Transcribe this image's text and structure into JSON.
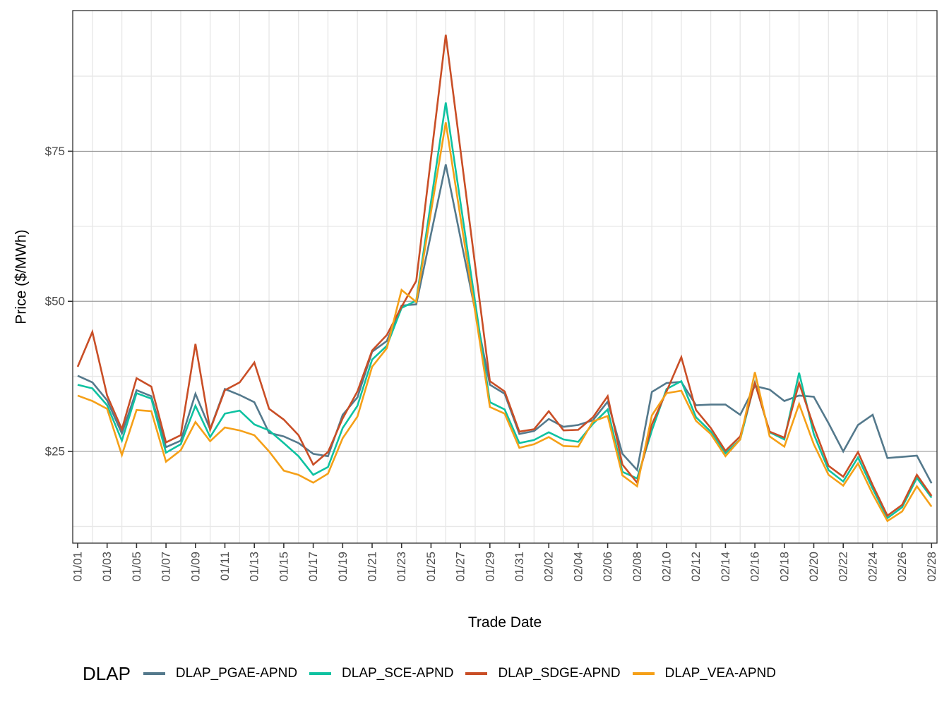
{
  "chart_data": {
    "type": "line",
    "title": "",
    "xlabel": "Trade Date",
    "ylabel": "Price ($/MWh)",
    "legend_title": "DLAP",
    "legend_position": "bottom",
    "grid": {
      "h_major_values": [
        25,
        50,
        75
      ],
      "h_minor_values": [
        12.5,
        37.5,
        62.5,
        87.5
      ],
      "v_gridlines_on_even_days": true
    },
    "ylim": [
      9.7,
      98.5
    ],
    "y_tick_labels": [
      "$25",
      "$50",
      "$75"
    ],
    "y_tick_values": [
      25,
      50,
      75
    ],
    "x_tick_labels": [
      "01/01",
      "01/03",
      "01/05",
      "01/07",
      "01/09",
      "01/11",
      "01/13",
      "01/15",
      "01/17",
      "01/19",
      "01/21",
      "01/23",
      "01/25",
      "01/27",
      "01/29",
      "01/31",
      "02/02",
      "02/04",
      "02/06",
      "02/08",
      "02/10",
      "02/12",
      "02/14",
      "02/16",
      "02/18",
      "02/20",
      "02/22",
      "02/24",
      "02/26",
      "02/28"
    ],
    "x": [
      "01/01",
      "01/02",
      "01/03",
      "01/04",
      "01/05",
      "01/06",
      "01/07",
      "01/08",
      "01/09",
      "01/10",
      "01/11",
      "01/12",
      "01/13",
      "01/14",
      "01/15",
      "01/16",
      "01/17",
      "01/18",
      "01/19",
      "01/20",
      "01/21",
      "01/22",
      "01/23",
      "01/24",
      "01/25",
      "01/26",
      "01/27",
      "01/28",
      "01/29",
      "01/30",
      "01/31",
      "02/01",
      "02/02",
      "02/03",
      "02/04",
      "02/05",
      "02/06",
      "02/07",
      "02/08",
      "02/09",
      "02/10",
      "02/11",
      "02/12",
      "02/13",
      "02/14",
      "02/15",
      "02/16",
      "02/17",
      "02/18",
      "02/19",
      "02/20",
      "02/21",
      "02/22",
      "02/23",
      "02/24",
      "02/25",
      "02/26",
      "02/27",
      "02/28"
    ],
    "series": [
      {
        "name": "DLAP_PGAE-APND",
        "color": "#54798C",
        "values": [
          37.6,
          36.5,
          33.5,
          28.0,
          35.2,
          34.2,
          25.7,
          26.8,
          34.6,
          28.7,
          35.4,
          34.4,
          33.2,
          28.1,
          27.5,
          26.4,
          24.6,
          24.2,
          31.1,
          34.0,
          41.6,
          43.4,
          49.3,
          49.5,
          61.2,
          72.8,
          60.6,
          48.4,
          36.1,
          34.6,
          27.9,
          28.4,
          30.4,
          29.1,
          29.4,
          30.2,
          33.3,
          24.6,
          21.9,
          34.9,
          36.4,
          36.6,
          32.7,
          32.8,
          32.8,
          31.1,
          35.9,
          35.3,
          33.4,
          34.3,
          34.1,
          29.7,
          25.0,
          29.4,
          31.1,
          23.9,
          24.1,
          24.3,
          19.7
        ]
      },
      {
        "name": "DLAP_SCE-APND",
        "color": "#0EC2A1",
        "values": [
          36.1,
          35.5,
          32.7,
          26.8,
          34.7,
          33.8,
          24.8,
          26.2,
          32.6,
          27.4,
          31.3,
          31.8,
          29.5,
          28.5,
          26.4,
          24.2,
          21.1,
          22.4,
          28.9,
          32.6,
          40.3,
          42.6,
          48.9,
          50.1,
          66.6,
          83.1,
          66.5,
          49.8,
          33.2,
          32.0,
          26.4,
          26.9,
          28.2,
          27.0,
          26.6,
          29.6,
          32.0,
          21.6,
          20.5,
          28.5,
          35.4,
          36.7,
          30.7,
          28.3,
          24.7,
          27.0,
          36.5,
          28.2,
          27.0,
          38.1,
          27.9,
          21.9,
          20.0,
          24.0,
          18.8,
          13.9,
          15.7,
          20.6,
          17.3
        ]
      },
      {
        "name": "DLAP_SDGE-APND",
        "color": "#C94E26",
        "values": [
          39.1,
          44.9,
          34.3,
          28.7,
          37.2,
          35.8,
          26.5,
          27.7,
          42.9,
          28.6,
          35.2,
          36.5,
          39.8,
          32.1,
          30.3,
          27.7,
          22.8,
          24.9,
          30.5,
          35.0,
          41.8,
          44.4,
          49.1,
          53.4,
          73.9,
          94.4,
          75.2,
          55.9,
          36.7,
          35.0,
          28.3,
          28.7,
          31.7,
          28.5,
          28.6,
          30.7,
          34.2,
          22.8,
          19.8,
          29.5,
          35.0,
          40.7,
          31.9,
          28.9,
          25.1,
          27.5,
          36.4,
          28.3,
          27.3,
          36.4,
          29.1,
          22.6,
          20.8,
          24.9,
          19.4,
          14.3,
          16.1,
          21.1,
          17.6
        ]
      },
      {
        "name": "DLAP_VEA-APND",
        "color": "#F5A018",
        "values": [
          34.3,
          33.4,
          32.1,
          24.4,
          31.9,
          31.7,
          23.3,
          25.2,
          29.9,
          26.7,
          29.0,
          28.5,
          27.7,
          25.0,
          21.8,
          21.1,
          19.8,
          21.3,
          27.2,
          30.8,
          39.1,
          42.2,
          51.9,
          49.9,
          64.9,
          79.8,
          64.0,
          48.2,
          32.4,
          31.3,
          25.6,
          26.2,
          27.4,
          25.9,
          25.8,
          30.0,
          30.9,
          21.0,
          19.2,
          31.0,
          34.7,
          35.1,
          30.1,
          27.9,
          24.2,
          27.0,
          38.2,
          27.5,
          25.8,
          32.9,
          26.2,
          21.1,
          19.3,
          23.0,
          17.9,
          13.4,
          15.0,
          19.2,
          15.8
        ]
      }
    ],
    "style": {
      "panel_border_color": "#2e2e2e",
      "h_major_color": "#8f8f8f",
      "minor_grid_color": "#e8e8e8",
      "tick_color": "#333333",
      "tick_label_color": "#4d4d4d",
      "axis_title_color": "#000000",
      "background": "#ffffff"
    }
  }
}
